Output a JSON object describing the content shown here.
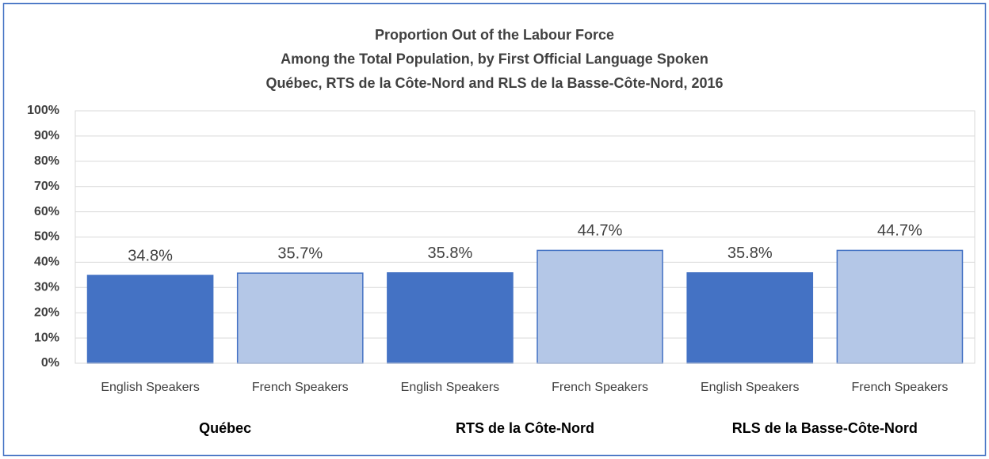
{
  "chart_data": {
    "type": "bar",
    "title": [
      "Proportion Out of the Labour Force",
      "Among the Total Population, by First Official Language Spoken",
      "Québec, RTS de la Côte-Nord and RLS de la Basse-Côte-Nord, 2016"
    ],
    "categories": [
      "English Speakers",
      "French Speakers",
      "English Speakers",
      "French Speakers",
      "English Speakers",
      "French Speakers"
    ],
    "groups": [
      "Québec",
      "RTS de la Côte-Nord",
      "RLS de la Basse-Côte-Nord"
    ],
    "values": [
      34.8,
      35.7,
      35.8,
      44.7,
      35.8,
      44.7
    ],
    "value_labels": [
      "34.8%",
      "35.7%",
      "35.8%",
      "44.7%",
      "35.8%",
      "44.7%"
    ],
    "colors": [
      "#4472c4",
      "#b4c7e7",
      "#4472c4",
      "#b4c7e7",
      "#4472c4",
      "#b4c7e7"
    ],
    "edgecolor": "#4472c4",
    "ylim": [
      0,
      100
    ],
    "yticks": [
      {
        "value": 0,
        "label": "0%"
      },
      {
        "value": 10,
        "label": "10%"
      },
      {
        "value": 20,
        "label": "20%"
      },
      {
        "value": 30,
        "label": "30%"
      },
      {
        "value": 40,
        "label": "40%"
      },
      {
        "value": 50,
        "label": "50%"
      },
      {
        "value": 60,
        "label": "60%"
      },
      {
        "value": 70,
        "label": "70%"
      },
      {
        "value": 80,
        "label": "80%"
      },
      {
        "value": 90,
        "label": "90%"
      },
      {
        "value": 100,
        "label": "100%"
      }
    ],
    "grid": true
  }
}
